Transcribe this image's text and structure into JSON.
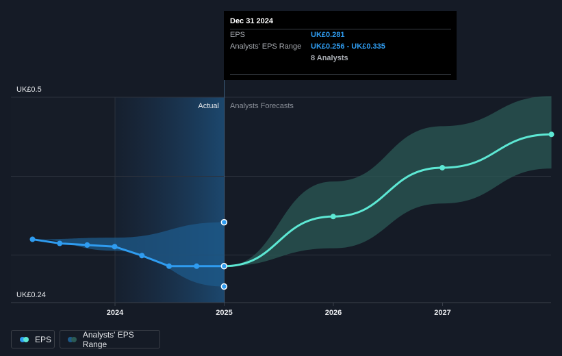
{
  "tooltip": {
    "date": "Dec 31 2024",
    "eps_label": "EPS",
    "eps_value": "UK£0.281",
    "range_label": "Analysts' EPS Range",
    "range_value": "UK£0.256 - UK£0.335",
    "analysts": "8 Analysts"
  },
  "colors": {
    "background": "#151b26",
    "actual_line": "#2f9cf0",
    "forecast_line": "#5de8d4",
    "forecast_band": "#2b5a55",
    "actual_band": "#1d5a8a"
  },
  "legend": {
    "eps": "EPS",
    "range": "Analysts' EPS Range"
  },
  "chart_data": {
    "type": "line",
    "title": "",
    "ylabel": "",
    "xlabel": "",
    "ylim": [
      0.24,
      0.5
    ],
    "y_ticks": [
      "UK£0.5",
      "UK£0.24"
    ],
    "x_ticks": [
      "2024",
      "2025",
      "2026",
      "2027"
    ],
    "sections": {
      "actual": "Actual",
      "forecast": "Analysts Forecasts"
    },
    "grid": true,
    "series": [
      {
        "name": "EPS",
        "kind": "actual",
        "x": [
          "2023-03-31",
          "2023-06-30",
          "2023-09-30",
          "2023-12-31",
          "2024-03-31",
          "2024-06-30",
          "2024-09-30",
          "2024-12-31"
        ],
        "values": [
          0.314,
          0.309,
          0.307,
          0.305,
          0.294,
          0.281,
          0.281,
          0.281
        ]
      },
      {
        "name": "EPS",
        "kind": "forecast",
        "x": [
          "2024-12-31",
          "2025-12-31",
          "2026-12-31",
          "2027-12-31"
        ],
        "values": [
          0.281,
          0.342,
          0.402,
          0.443
        ]
      },
      {
        "name": "Analysts' EPS Range",
        "kind": "actual_range",
        "x": [
          "2023-03-31",
          "2023-12-31",
          "2024-12-31"
        ],
        "low": [
          0.314,
          0.3,
          0.256
        ],
        "high": [
          0.314,
          0.316,
          0.335
        ]
      },
      {
        "name": "Analysts' EPS Range",
        "kind": "forecast_range",
        "x": [
          "2024-12-31",
          "2025-12-31",
          "2026-12-31",
          "2027-12-31"
        ],
        "low": [
          0.281,
          0.303,
          0.358,
          0.401
        ],
        "high": [
          0.281,
          0.385,
          0.453,
          0.49
        ]
      }
    ]
  }
}
